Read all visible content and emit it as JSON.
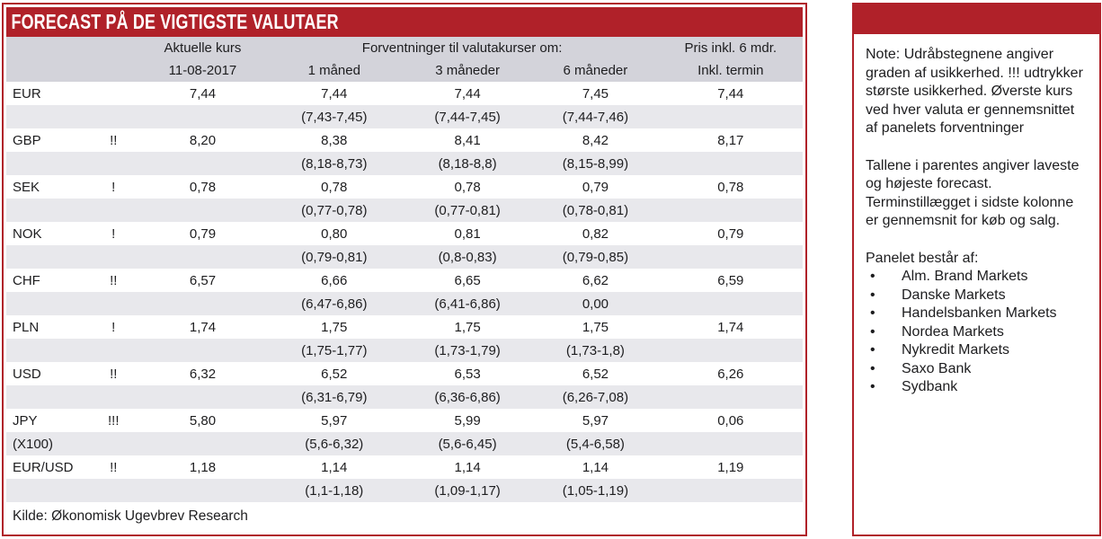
{
  "title": "FORECAST PÅ DE VIGTIGSTE VALUTAER",
  "colors": {
    "accent_red": "#b02129",
    "header_gray": "#d3d3da",
    "range_row_gray": "#e8e8ec"
  },
  "table": {
    "headers": {
      "aktuelle_kurs": "Aktuelle kurs",
      "date": "11-08-2017",
      "forventninger": "Forventninger til valutakurser om:",
      "m1": "1 måned",
      "m3": "3 måneder",
      "m6": "6 måneder",
      "pris": "Pris inkl. 6 mdr.",
      "termin": "Inkl. termin"
    },
    "rows": [
      {
        "name": "EUR",
        "name2": "",
        "uncertainty": "",
        "aktuel": "7,44",
        "m1": "7,44",
        "m1_range": "(7,43-7,45)",
        "m3": "7,44",
        "m3_range": "(7,44-7,45)",
        "m6": "7,45",
        "m6_range": "(7,44-7,46)",
        "termin": "7,44"
      },
      {
        "name": "GBP",
        "name2": "",
        "uncertainty": "!!",
        "aktuel": "8,20",
        "m1": "8,38",
        "m1_range": "(8,18-8,73)",
        "m3": "8,41",
        "m3_range": "(8,18-8,8)",
        "m6": "8,42",
        "m6_range": "(8,15-8,99)",
        "termin": "8,17"
      },
      {
        "name": "SEK",
        "name2": "",
        "uncertainty": "!",
        "aktuel": "0,78",
        "m1": "0,78",
        "m1_range": "(0,77-0,78)",
        "m3": "0,78",
        "m3_range": "(0,77-0,81)",
        "m6": "0,79",
        "m6_range": "(0,78-0,81)",
        "termin": "0,78"
      },
      {
        "name": "NOK",
        "name2": "",
        "uncertainty": "!",
        "aktuel": "0,79",
        "m1": "0,80",
        "m1_range": "(0,79-0,81)",
        "m3": "0,81",
        "m3_range": "(0,8-0,83)",
        "m6": "0,82",
        "m6_range": "(0,79-0,85)",
        "termin": "0,79"
      },
      {
        "name": "CHF",
        "name2": "",
        "uncertainty": "!!",
        "aktuel": "6,57",
        "m1": "6,66",
        "m1_range": "(6,47-6,86)",
        "m3": "6,65",
        "m3_range": "(6,41-6,86)",
        "m6": "6,62",
        "m6_range": "0,00",
        "termin": "6,59"
      },
      {
        "name": "PLN",
        "name2": "",
        "uncertainty": "!",
        "aktuel": "1,74",
        "m1": "1,75",
        "m1_range": "(1,75-1,77)",
        "m3": "1,75",
        "m3_range": "(1,73-1,79)",
        "m6": "1,75",
        "m6_range": "(1,73-1,8)",
        "termin": "1,74"
      },
      {
        "name": "USD",
        "name2": "",
        "uncertainty": "!!",
        "aktuel": "6,32",
        "m1": "6,52",
        "m1_range": "(6,31-6,79)",
        "m3": "6,53",
        "m3_range": "(6,36-6,86)",
        "m6": "6,52",
        "m6_range": "(6,26-7,08)",
        "termin": "6,26"
      },
      {
        "name": "JPY",
        "name2": "(X100)",
        "uncertainty": "!!!",
        "aktuel": "5,80",
        "m1": "5,97",
        "m1_range": "(5,6-6,32)",
        "m3": "5,99",
        "m3_range": "(5,6-6,45)",
        "m6": "5,97",
        "m6_range": "(5,4-6,58)",
        "termin": "0,06"
      },
      {
        "name": "EUR/USD",
        "name2": "",
        "uncertainty": "!!",
        "aktuel": "1,18",
        "m1": "1,14",
        "m1_range": "(1,1-1,18)",
        "m3": "1,14",
        "m3_range": "(1,09-1,17)",
        "m6": "1,14",
        "m6_range": "(1,05-1,19)",
        "termin": "1,19"
      }
    ],
    "source": "Kilde: Økonomisk Ugevbrev Research"
  },
  "note": {
    "bullet_char": "•",
    "paragraph1": "Note: Udråbstegnene angiver graden af usikkerhed. !!! udtrykker største usikkerhed. Øverste kurs ved hver valuta er gennemsnittet af panelets forventninger",
    "paragraph2": "Tallene i parentes angiver laveste og højeste forecast. Terminstillægget i sidste kolonne er gennemsnit for køb og salg.",
    "panel_heading": "Panelet består af:",
    "panel_members": [
      "Alm. Brand Markets",
      "Danske Markets",
      "Handelsbanken Markets",
      "Nordea Markets",
      "Nykredit Markets",
      "Saxo Bank",
      "Sydbank"
    ]
  }
}
